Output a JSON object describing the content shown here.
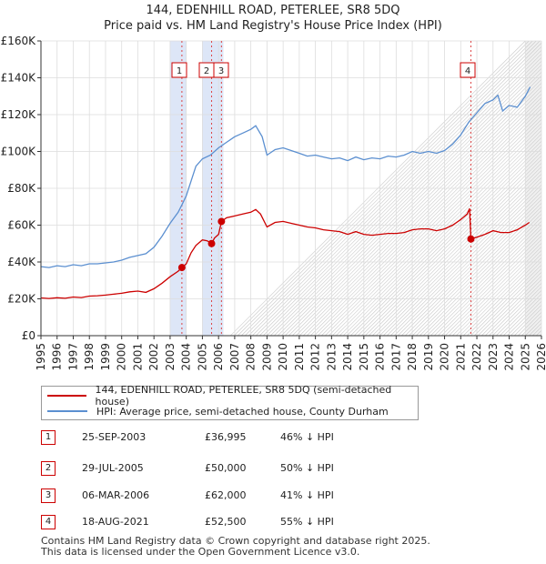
{
  "chart_data": {
    "type": "line",
    "title": "144, EDENHILL ROAD, PETERLEE, SR8 5DQ",
    "subtitle": "Price paid vs. HM Land Registry's House Price Index (HPI)",
    "xlim": [
      1995,
      2026
    ],
    "ylim": [
      0,
      160000
    ],
    "yticks": [
      0,
      20000,
      40000,
      60000,
      80000,
      100000,
      120000,
      140000,
      160000
    ],
    "ytick_labels": [
      "£0",
      "£20K",
      "£40K",
      "£60K",
      "£80K",
      "£100K",
      "£120K",
      "£140K",
      "£160K"
    ],
    "xtick_labels": [
      "1995",
      "1996",
      "1997",
      "1998",
      "1999",
      "2000",
      "2001",
      "2002",
      "2003",
      "2004",
      "2005",
      "2006",
      "2007",
      "2008",
      "2009",
      "2010",
      "2011",
      "2012",
      "2013",
      "2014",
      "2015",
      "2016",
      "2017",
      "2018",
      "2019",
      "2020",
      "2021",
      "2022",
      "2023",
      "2024",
      "2025",
      "2026"
    ],
    "grid": true,
    "forecast_start": 2025.0,
    "series": [
      {
        "name": "144, EDENHILL ROAD, PETERLEE, SR8 5DQ (semi-detached house)",
        "color": "#cc0000",
        "points": [
          [
            1995.0,
            20500
          ],
          [
            1995.5,
            20200
          ],
          [
            1996.0,
            20600
          ],
          [
            1996.5,
            20300
          ],
          [
            1997.0,
            21000
          ],
          [
            1997.5,
            20700
          ],
          [
            1998.0,
            21500
          ],
          [
            1998.5,
            21700
          ],
          [
            1999.0,
            22000
          ],
          [
            1999.5,
            22500
          ],
          [
            2000.0,
            23000
          ],
          [
            2000.5,
            23800
          ],
          [
            2001.0,
            24200
          ],
          [
            2001.5,
            23500
          ],
          [
            2002.0,
            25500
          ],
          [
            2002.5,
            28500
          ],
          [
            2003.0,
            32000
          ],
          [
            2003.5,
            35000
          ],
          [
            2003.73,
            36995
          ],
          [
            2004.0,
            39000
          ],
          [
            2004.3,
            45000
          ],
          [
            2004.6,
            49000
          ],
          [
            2005.0,
            52000
          ],
          [
            2005.3,
            51500
          ],
          [
            2005.57,
            50000
          ],
          [
            2005.75,
            53000
          ],
          [
            2006.0,
            55000
          ],
          [
            2006.18,
            62000
          ],
          [
            2006.5,
            64000
          ],
          [
            2007.0,
            65000
          ],
          [
            2007.5,
            66000
          ],
          [
            2008.0,
            67000
          ],
          [
            2008.3,
            68500
          ],
          [
            2008.6,
            66000
          ],
          [
            2009.0,
            59000
          ],
          [
            2009.5,
            61500
          ],
          [
            2010.0,
            62000
          ],
          [
            2010.5,
            61000
          ],
          [
            2011.0,
            60000
          ],
          [
            2011.5,
            59000
          ],
          [
            2012.0,
            58500
          ],
          [
            2012.5,
            57500
          ],
          [
            2013.0,
            57000
          ],
          [
            2013.5,
            56500
          ],
          [
            2014.0,
            55000
          ],
          [
            2014.5,
            56500
          ],
          [
            2015.0,
            55000
          ],
          [
            2015.5,
            54500
          ],
          [
            2016.0,
            55000
          ],
          [
            2016.5,
            55500
          ],
          [
            2017.0,
            55500
          ],
          [
            2017.5,
            56000
          ],
          [
            2018.0,
            57500
          ],
          [
            2018.5,
            58000
          ],
          [
            2019.0,
            58000
          ],
          [
            2019.5,
            57000
          ],
          [
            2020.0,
            58000
          ],
          [
            2020.5,
            60000
          ],
          [
            2021.0,
            63000
          ],
          [
            2021.4,
            66000
          ],
          [
            2021.55,
            69000
          ],
          [
            2021.63,
            52500
          ],
          [
            2022.0,
            53500
          ],
          [
            2022.5,
            55000
          ],
          [
            2023.0,
            57000
          ],
          [
            2023.5,
            56000
          ],
          [
            2024.0,
            56000
          ],
          [
            2024.5,
            57500
          ],
          [
            2025.0,
            60000
          ],
          [
            2025.25,
            61500
          ]
        ]
      },
      {
        "name": "HPI: Average price, semi-detached house, County Durham",
        "color": "#5b8fd0",
        "points": [
          [
            1995.0,
            37500
          ],
          [
            1995.5,
            37000
          ],
          [
            1996.0,
            38000
          ],
          [
            1996.5,
            37500
          ],
          [
            1997.0,
            38500
          ],
          [
            1997.5,
            38000
          ],
          [
            1998.0,
            39000
          ],
          [
            1998.5,
            39000
          ],
          [
            1999.0,
            39500
          ],
          [
            1999.5,
            40000
          ],
          [
            2000.0,
            41000
          ],
          [
            2000.5,
            42500
          ],
          [
            2001.0,
            43500
          ],
          [
            2001.5,
            44500
          ],
          [
            2002.0,
            48000
          ],
          [
            2002.5,
            54000
          ],
          [
            2003.0,
            61000
          ],
          [
            2003.5,
            67000
          ],
          [
            2003.73,
            71000
          ],
          [
            2004.0,
            76000
          ],
          [
            2004.3,
            84000
          ],
          [
            2004.6,
            92000
          ],
          [
            2005.0,
            96000
          ],
          [
            2005.5,
            98000
          ],
          [
            2006.0,
            102000
          ],
          [
            2006.5,
            105000
          ],
          [
            2007.0,
            108000
          ],
          [
            2007.5,
            110000
          ],
          [
            2008.0,
            112000
          ],
          [
            2008.3,
            114000
          ],
          [
            2008.7,
            108000
          ],
          [
            2009.0,
            98000
          ],
          [
            2009.5,
            101000
          ],
          [
            2010.0,
            102000
          ],
          [
            2010.5,
            100500
          ],
          [
            2011.0,
            99000
          ],
          [
            2011.5,
            97500
          ],
          [
            2012.0,
            98000
          ],
          [
            2012.5,
            97000
          ],
          [
            2013.0,
            96000
          ],
          [
            2013.5,
            96500
          ],
          [
            2014.0,
            95000
          ],
          [
            2014.5,
            97000
          ],
          [
            2015.0,
            95500
          ],
          [
            2015.5,
            96500
          ],
          [
            2016.0,
            96000
          ],
          [
            2016.5,
            97500
          ],
          [
            2017.0,
            97000
          ],
          [
            2017.5,
            98000
          ],
          [
            2018.0,
            100000
          ],
          [
            2018.5,
            99000
          ],
          [
            2019.0,
            100000
          ],
          [
            2019.5,
            99000
          ],
          [
            2020.0,
            100500
          ],
          [
            2020.5,
            104000
          ],
          [
            2021.0,
            109000
          ],
          [
            2021.5,
            116000
          ],
          [
            2022.0,
            121000
          ],
          [
            2022.5,
            126000
          ],
          [
            2023.0,
            128000
          ],
          [
            2023.3,
            130500
          ],
          [
            2023.6,
            122000
          ],
          [
            2024.0,
            125000
          ],
          [
            2024.5,
            124000
          ],
          [
            2025.0,
            130000
          ],
          [
            2025.3,
            135000
          ]
        ]
      }
    ],
    "transactions": [
      {
        "label": "1",
        "x": 2003.73,
        "price": 36995
      },
      {
        "label": "2",
        "x": 2005.57,
        "price": 50000
      },
      {
        "label": "3",
        "x": 2006.18,
        "price": 62000
      },
      {
        "label": "4",
        "x": 2021.63,
        "price": 52500
      }
    ],
    "shaded_periods": [
      [
        2003.0,
        2004.0
      ],
      [
        2005.0,
        2006.3
      ]
    ]
  },
  "legend": {
    "property_label": "144, EDENHILL ROAD, PETERLEE, SR8 5DQ (semi-detached house)",
    "hpi_label": "HPI: Average price, semi-detached house, County Durham"
  },
  "table": [
    {
      "num": "1",
      "date": "25-SEP-2003",
      "price": "£36,995",
      "hpi": "46% ↓ HPI"
    },
    {
      "num": "2",
      "date": "29-JUL-2005",
      "price": "£50,000",
      "hpi": "50% ↓ HPI"
    },
    {
      "num": "3",
      "date": "06-MAR-2006",
      "price": "£62,000",
      "hpi": "41% ↓ HPI"
    },
    {
      "num": "4",
      "date": "18-AUG-2021",
      "price": "£52,500",
      "hpi": "55% ↓ HPI"
    }
  ],
  "footer": {
    "line1": "Contains HM Land Registry data © Crown copyright and database right 2025.",
    "line2": "This data is licensed under the Open Government Licence v3.0."
  }
}
